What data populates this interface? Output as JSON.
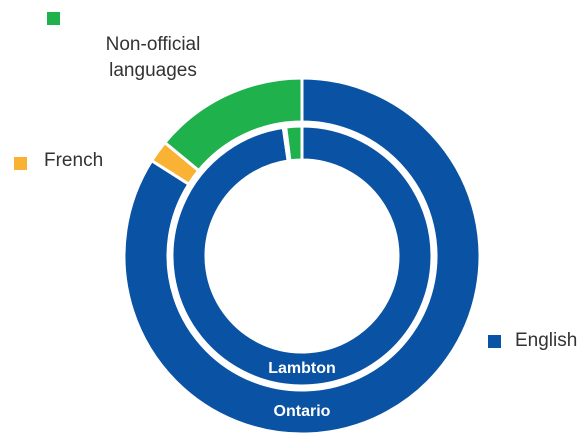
{
  "chart_data": {
    "type": "donut",
    "categories": [
      "English",
      "French",
      "Non-official languages"
    ],
    "colors": [
      "#0a52a3",
      "#f9b233",
      "#1fb14c"
    ],
    "series": [
      {
        "name": "Ontario",
        "values": [
          84,
          2,
          14
        ]
      },
      {
        "name": "Lambton",
        "values": [
          97.7,
          0.3,
          2
        ]
      }
    ]
  }
}
